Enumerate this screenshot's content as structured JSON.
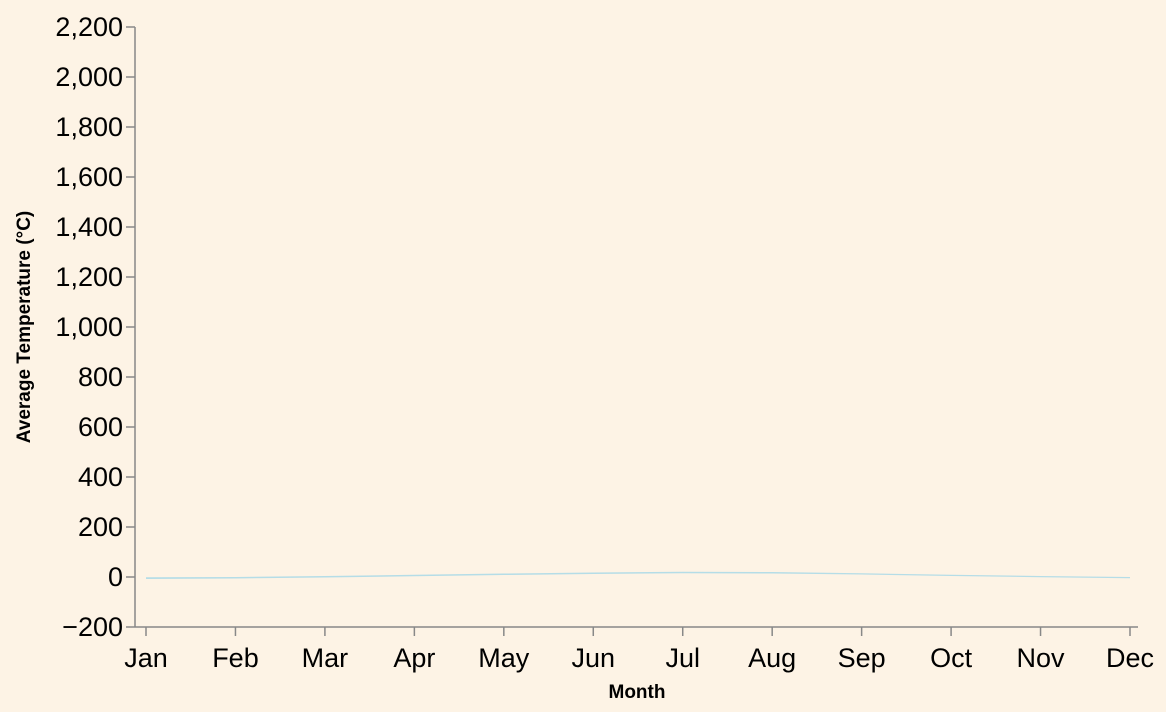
{
  "chart_data": {
    "type": "area",
    "title": "",
    "xlabel": "Month",
    "ylabel": "Average Temperature (°C)",
    "categories": [
      "Jan",
      "Feb",
      "Mar",
      "Apr",
      "May",
      "Jun",
      "Jul",
      "Aug",
      "Sep",
      "Oct",
      "Nov",
      "Dec"
    ],
    "y_ticks": [
      "−200",
      "0",
      "200",
      "400",
      "600",
      "800",
      "1,000",
      "1,200",
      "1,400",
      "1,600",
      "1,800",
      "2,000",
      "2,200"
    ],
    "y_tick_values": [
      -200,
      0,
      200,
      400,
      600,
      800,
      1000,
      1200,
      1400,
      1600,
      1800,
      2000,
      2200
    ],
    "ylim": [
      -200,
      2200
    ],
    "grid": false,
    "series": [
      {
        "values": [
          -1,
          0,
          4,
          9,
          14,
          18,
          21,
          20,
          15,
          9,
          4,
          0
        ],
        "lower": [
          -8,
          -6,
          -2,
          3,
          8,
          12,
          15,
          14,
          10,
          4,
          -1,
          -5
        ]
      }
    ],
    "colors": {
      "background": "#fdf3e5",
      "area": "#a8d8e8",
      "axis": "#888888",
      "text": "#000000"
    }
  }
}
